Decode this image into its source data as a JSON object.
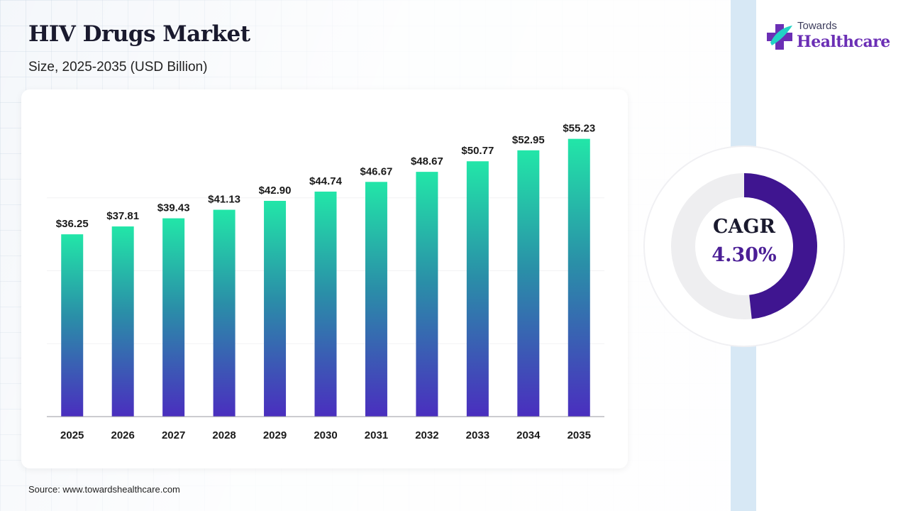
{
  "header": {
    "title": "HIV Drugs Market",
    "subtitle": "Size, 2025-2035 (USD Billion)"
  },
  "logo": {
    "top_text": "Towards",
    "main_text": "Healthcare",
    "icon": "medical-cross-icon"
  },
  "cagr": {
    "label": "CAGR",
    "value": "4.30%",
    "percent": 4.3
  },
  "source": "Source: www.towardshealthcare.com",
  "colors": {
    "bar_top": "#22e6a8",
    "bar_mid": "#2a8fa8",
    "bar_bottom": "#4a2ebf",
    "donut_arc": "#3f1590",
    "donut_track": "#eeeef0",
    "logo_purple": "#6b2fb5"
  },
  "chart_data": {
    "type": "bar",
    "categories": [
      "2025",
      "2026",
      "2027",
      "2028",
      "2029",
      "2030",
      "2031",
      "2032",
      "2033",
      "2034",
      "2035"
    ],
    "values": [
      36.25,
      37.81,
      39.43,
      41.13,
      42.9,
      44.74,
      46.67,
      48.67,
      50.77,
      52.95,
      55.23
    ],
    "labels": [
      "$36.25",
      "$37.81",
      "$39.43",
      "$41.13",
      "$42.90",
      "$44.74",
      "$46.67",
      "$48.67",
      "$50.77",
      "$52.95",
      "$55.23"
    ],
    "title": "HIV Drugs Market",
    "xlabel": "",
    "ylabel": "",
    "ylim": [
      0,
      58
    ],
    "grid": false,
    "legend": "none"
  }
}
